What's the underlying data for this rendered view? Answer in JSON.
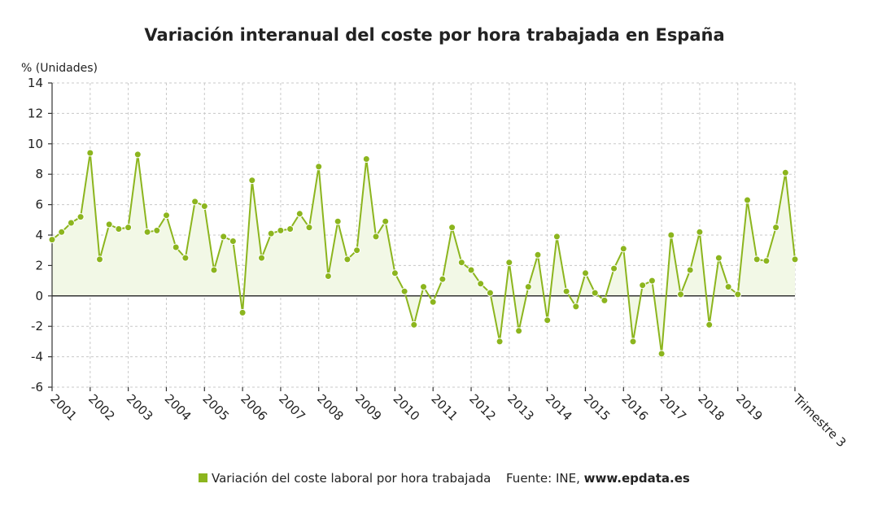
{
  "chart_data": {
    "type": "line",
    "title": "Variación interanual del coste por hora trabajada en España",
    "ylabel": "% (Unidades)",
    "xlabel": "",
    "ylim": [
      -6,
      14
    ],
    "yticks": [
      -6,
      -4,
      -2,
      0,
      2,
      4,
      6,
      8,
      10,
      12,
      14
    ],
    "x_tick_labels": [
      "2001",
      "2002",
      "2003",
      "2004",
      "2005",
      "2006",
      "2007",
      "2008",
      "2009",
      "2010",
      "2011",
      "2012",
      "2013",
      "2014",
      "2015",
      "2016",
      "2017",
      "2018",
      "2019",
      "Trimestre 3"
    ],
    "grid": true,
    "legend_position": "bottom",
    "series": [
      {
        "name": "Variación del coste laboral por hora trabajada",
        "color": "#8cb51e",
        "fill": "#f2f8e6",
        "values": [
          3.7,
          4.2,
          4.8,
          5.2,
          9.4,
          2.4,
          4.7,
          4.4,
          4.5,
          9.3,
          4.2,
          4.3,
          5.3,
          3.2,
          2.5,
          6.2,
          5.9,
          1.7,
          3.9,
          3.6,
          -1.1,
          7.6,
          2.5,
          4.1,
          4.3,
          4.4,
          5.4,
          4.5,
          8.5,
          1.3,
          4.9,
          2.4,
          3.0,
          9.0,
          3.9,
          4.9,
          1.5,
          0.3,
          -1.9,
          0.6,
          -0.4,
          1.1,
          4.5,
          2.2,
          1.7,
          0.8,
          0.2,
          -3.0,
          2.2,
          -2.3,
          0.6,
          2.7,
          -1.6,
          3.9,
          0.3,
          -0.7,
          1.5,
          0.2,
          -0.3,
          1.8,
          3.1,
          -3.0,
          0.7,
          1.0,
          -3.8,
          4.0,
          0.1,
          1.7,
          4.2,
          -1.9,
          2.5,
          0.6,
          0.1,
          6.3,
          2.4,
          2.3,
          4.5,
          8.1,
          2.4
        ]
      }
    ],
    "source_label": "Fuente: INE, ",
    "source_site": "www.epdata.es"
  }
}
